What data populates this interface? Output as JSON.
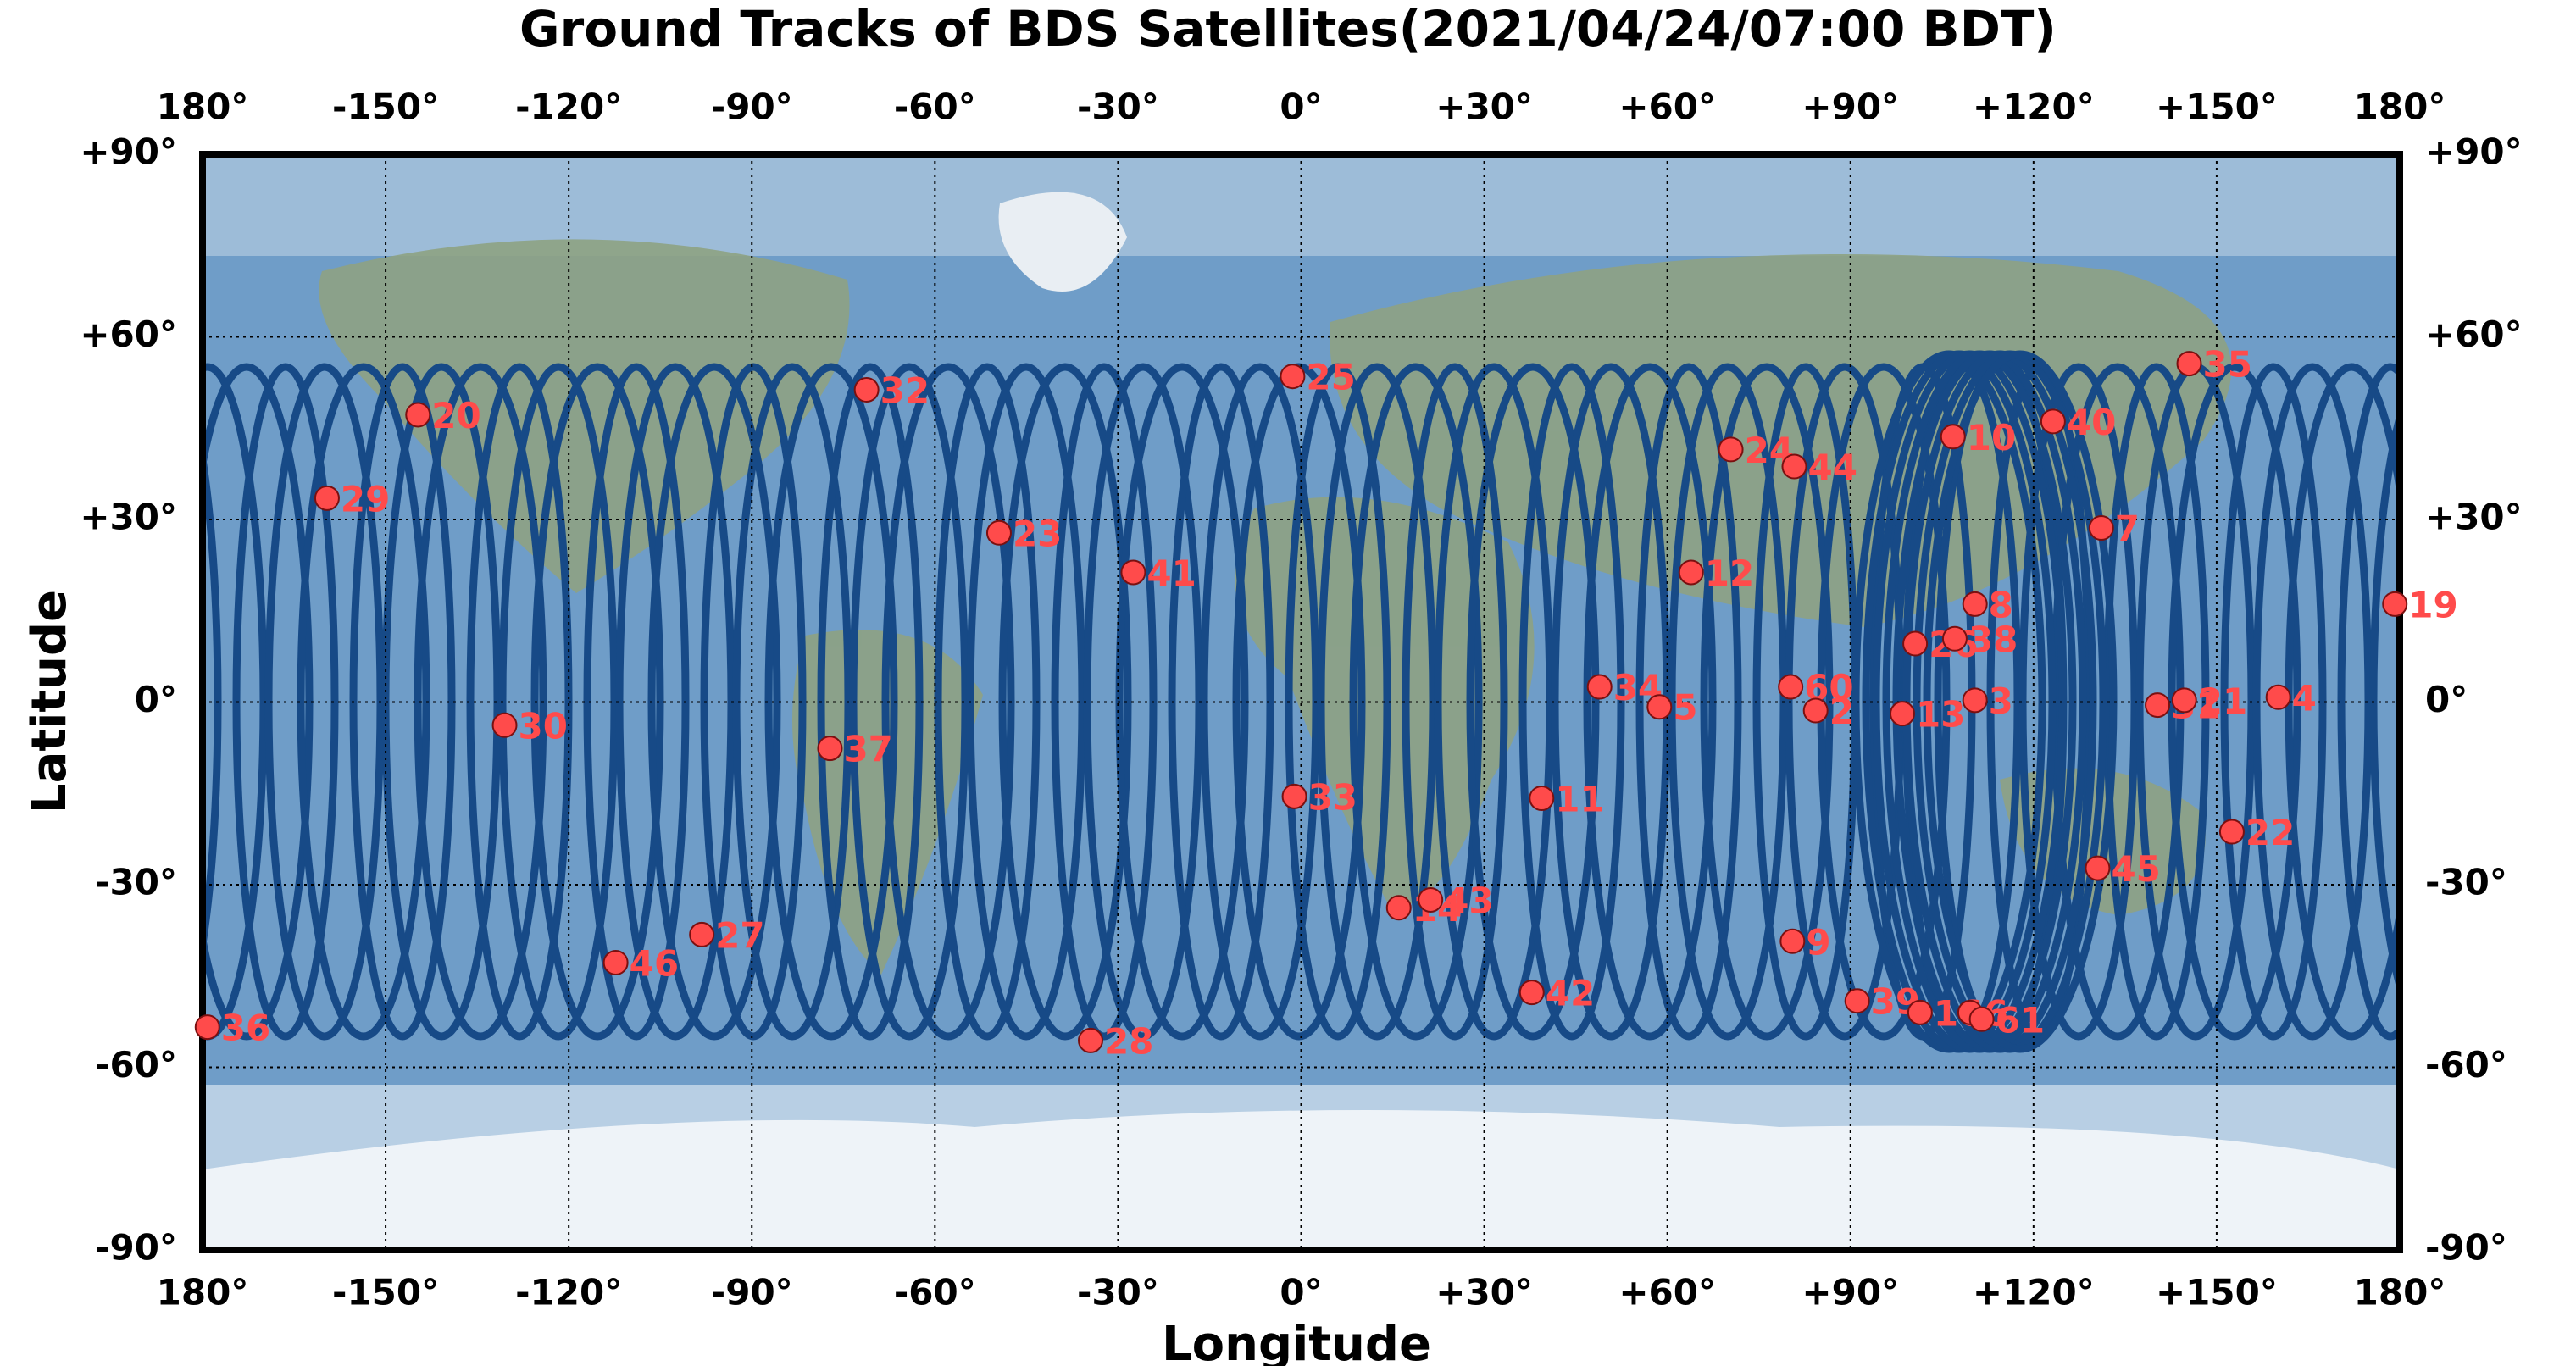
{
  "chart_data": {
    "type": "scatter",
    "title": "Ground Tracks of BDS Satellites(2021/04/24/07:00 BDT)",
    "xlabel": "Longitude",
    "ylabel": "Latitude",
    "xlim": [
      -180,
      180
    ],
    "ylim": [
      -90,
      90
    ],
    "xticks": [
      {
        "value": -180,
        "label": "180°"
      },
      {
        "value": -150,
        "label": "-150°"
      },
      {
        "value": -120,
        "label": "-120°"
      },
      {
        "value": -90,
        "label": "-90°"
      },
      {
        "value": -60,
        "label": "-60°"
      },
      {
        "value": -30,
        "label": "-30°"
      },
      {
        "value": 0,
        "label": "0°"
      },
      {
        "value": 30,
        "label": "+30°"
      },
      {
        "value": 60,
        "label": "+60°"
      },
      {
        "value": 90,
        "label": "+90°"
      },
      {
        "value": 120,
        "label": "+120°"
      },
      {
        "value": 150,
        "label": "+150°"
      },
      {
        "value": 180,
        "label": "180°"
      }
    ],
    "yticks": [
      {
        "value": -90,
        "label": "-90°"
      },
      {
        "value": -60,
        "label": "-60°"
      },
      {
        "value": -30,
        "label": "-30°"
      },
      {
        "value": 0,
        "label": "0°"
      },
      {
        "value": 30,
        "label": "+30°"
      },
      {
        "value": 60,
        "label": "+60°"
      },
      {
        "value": 90,
        "label": "+90°"
      }
    ],
    "grid": true,
    "color": "#ff4b4b",
    "track_color": "#174a87",
    "labels": [
      "36",
      "20",
      "29",
      "30",
      "32",
      "23",
      "37",
      "41",
      "25",
      "33",
      "14",
      "43",
      "27",
      "46",
      "28",
      "11",
      "42",
      "34",
      "5",
      "12",
      "24",
      "44",
      "60",
      "2",
      "9",
      "39",
      "16",
      "6",
      "61",
      "13",
      "3",
      "10",
      "40",
      "8",
      "26",
      "38",
      "7",
      "35",
      "45",
      "22",
      "4",
      "19",
      "31",
      "21"
    ],
    "x": [
      -179.2,
      -144.7,
      -159.6,
      -130.5,
      -71.2,
      -49.5,
      -77.2,
      -27.5,
      -1.4,
      -1.1,
      16.0,
      21.2,
      -98.2,
      -112.3,
      -34.5,
      39.4,
      37.8,
      48.9,
      58.7,
      63.9,
      70.4,
      80.8,
      80.2,
      84.3,
      80.5,
      91.1,
      101.4,
      109.6,
      111.5,
      98.5,
      110.4,
      106.8,
      123.2,
      110.4,
      100.6,
      107.1,
      131.1,
      145.5,
      130.5,
      152.5,
      160.1,
      179.2,
      140.3,
      144.7
    ],
    "values": [
      -53.4,
      47.2,
      33.5,
      -3.8,
      51.3,
      27.8,
      -7.6,
      21.3,
      53.5,
      -15.5,
      -33.8,
      -32.5,
      -38.2,
      -42.8,
      -55.6,
      -15.8,
      -47.7,
      2.5,
      -0.8,
      21.3,
      41.5,
      38.7,
      2.5,
      -1.4,
      -39.3,
      -49.1,
      -51.0,
      -51.0,
      -52.1,
      -1.9,
      0.3,
      43.6,
      46.1,
      16.1,
      9.6,
      10.4,
      28.6,
      55.6,
      -27.3,
      -21.3,
      0.8,
      16.1,
      -0.5,
      0.3
    ]
  }
}
